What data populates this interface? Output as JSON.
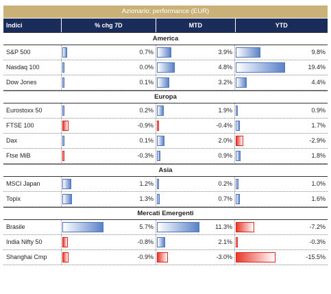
{
  "title": "Azionario: performance (EUR)",
  "headers": [
    "Indici",
    "% chg 7D",
    "MTD",
    "YTD"
  ],
  "sections": [
    {
      "name": "America",
      "rows": [
        {
          "name": "S&P 500",
          "v": [
            "0.7%",
            "3.9%",
            "9.8%"
          ],
          "n": [
            0.7,
            3.9,
            9.8
          ]
        },
        {
          "name": "Nasdaq 100",
          "v": [
            "0.0%",
            "4.8%",
            "19.4%"
          ],
          "n": [
            0.0,
            4.8,
            19.4
          ]
        },
        {
          "name": "Dow Jones",
          "v": [
            "0.1%",
            "3.2%",
            "4.4%"
          ],
          "n": [
            0.1,
            3.2,
            4.4
          ]
        }
      ]
    },
    {
      "name": "Europa",
      "rows": [
        {
          "name": "Eurostoxx 50",
          "v": [
            "0.2%",
            "1.9%",
            "0.9%"
          ],
          "n": [
            0.2,
            1.9,
            0.9
          ]
        },
        {
          "name": "FTSE 100",
          "v": [
            "-0.9%",
            "-0.4%",
            "1.7%"
          ],
          "n": [
            -0.9,
            -0.4,
            1.7
          ]
        },
        {
          "name": "Dax",
          "v": [
            "0.1%",
            "2.0%",
            "-2.9%"
          ],
          "n": [
            0.1,
            2.0,
            -2.9
          ]
        },
        {
          "name": "Ftse MiB",
          "v": [
            "-0.3%",
            "0.9%",
            "1.8%"
          ],
          "n": [
            -0.3,
            0.9,
            1.8
          ]
        }
      ]
    },
    {
      "name": "Asia",
      "rows": [
        {
          "name": "MSCI Japan",
          "v": [
            "1.2%",
            "0.2%",
            "1.0%"
          ],
          "n": [
            1.2,
            0.2,
            1.0
          ]
        },
        {
          "name": "Topix",
          "v": [
            "1.3%",
            "0.7%",
            "1.6%"
          ],
          "n": [
            1.3,
            0.7,
            1.6
          ]
        }
      ]
    },
    {
      "name": "Mercati Emergenti",
      "rows": [
        {
          "name": "Brasile",
          "v": [
            "5.7%",
            "11.3%",
            "-7.2%"
          ],
          "n": [
            5.7,
            11.3,
            -7.2
          ]
        },
        {
          "name": "India Nifty 50",
          "v": [
            "-0.8%",
            "2.1%",
            "-0.3%"
          ],
          "n": [
            -0.8,
            2.1,
            -0.3
          ]
        },
        {
          "name": "Shanghai Cmp",
          "v": [
            "-0.9%",
            "-3.0%",
            "-15.5%"
          ],
          "n": [
            -0.9,
            -3.0,
            -15.5
          ]
        }
      ]
    }
  ],
  "colors": {
    "header_bg": "#1a2d5a",
    "title_bg": "#c9b178",
    "positive": "#5b82c8",
    "negative": "#e83a2b"
  }
}
